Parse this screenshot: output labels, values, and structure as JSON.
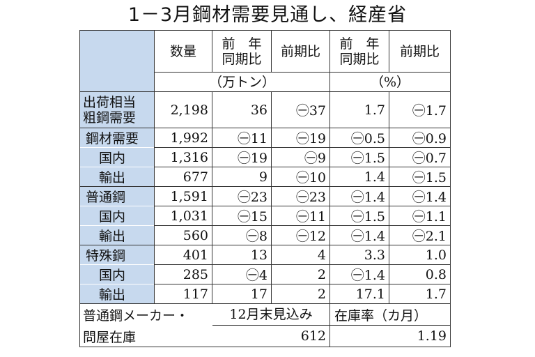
{
  "title": "1－3月鋼材需要見通し、経産省",
  "headers": {
    "quantity": "数量",
    "yoy": "前　年\n同期比",
    "qoq": "前期比",
    "yoy_pct": "前　年\n同期比",
    "qoq_pct": "前期比",
    "unit_tons": "（万トン）",
    "unit_pct": "（%）"
  },
  "rows": [
    {
      "label": "出荷相当\n粗鋼需要",
      "level": "top",
      "values": [
        "2,198",
        "36",
        "㊀37",
        "1.7",
        "㊀1.7"
      ]
    },
    {
      "label": "鋼材需要",
      "level": "cat",
      "values": [
        "1,992",
        "㊀11",
        "㊀19",
        "㊀0.5",
        "㊀0.9"
      ]
    },
    {
      "label": "国内",
      "level": "sub",
      "values": [
        "1,316",
        "㊀19",
        "㊀9",
        "㊀1.5",
        "㊀0.7"
      ]
    },
    {
      "label": "輸出",
      "level": "sub",
      "values": [
        "677",
        "9",
        "㊀10",
        "1.4",
        "㊀1.5"
      ]
    },
    {
      "label": "普通鋼",
      "level": "cat",
      "values": [
        "1,591",
        "㊀23",
        "㊀23",
        "㊀1.4",
        "㊀1.4"
      ]
    },
    {
      "label": "国内",
      "level": "sub",
      "values": [
        "1,031",
        "㊀15",
        "㊀11",
        "㊀1.5",
        "㊀1.1"
      ]
    },
    {
      "label": "輸出",
      "level": "sub",
      "values": [
        "560",
        "㊀8",
        "㊀12",
        "㊀1.4",
        "㊀2.1"
      ]
    },
    {
      "label": "特殊鋼",
      "level": "cat",
      "values": [
        "401",
        "13",
        "4",
        "3.3",
        "1.0"
      ]
    },
    {
      "label": "国内",
      "level": "sub",
      "values": [
        "285",
        "㊀4",
        "2",
        "㊀1.4",
        "0.8"
      ]
    },
    {
      "label": "輸出",
      "level": "sub",
      "values": [
        "117",
        "17",
        "2",
        "17.1",
        "1.7"
      ]
    }
  ],
  "footer": {
    "label_line1": "普通鋼メーカー・",
    "label_line2": "問屋在庫",
    "col1_header": "12月末見込み",
    "col2_header": "在庫率（カ月）",
    "col1_value": "612",
    "col2_value": "1.19"
  }
}
